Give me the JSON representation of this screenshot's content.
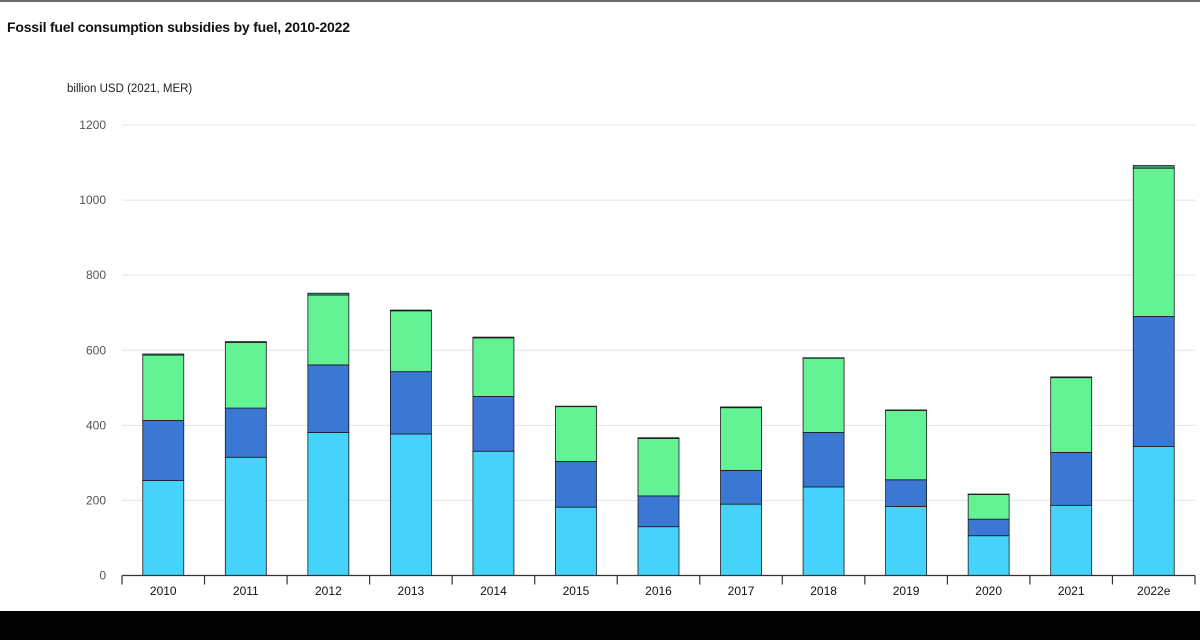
{
  "title": "Fossil fuel consumption subsidies by fuel, 2010-2022",
  "unit_label": "billion USD (2021, MER)",
  "chart_data": {
    "type": "bar",
    "stacked": true,
    "title": "Fossil fuel consumption subsidies by fuel, 2010-2022",
    "ylabel": "billion USD (2021, MER)",
    "xlabel": "",
    "ylim": [
      0,
      1200
    ],
    "yticks": [
      0,
      200,
      400,
      600,
      800,
      1000,
      1200
    ],
    "grid": true,
    "categories": [
      "2010",
      "2011",
      "2012",
      "2013",
      "2014",
      "2015",
      "2016",
      "2017",
      "2018",
      "2019",
      "2020",
      "2021",
      "2022e"
    ],
    "series": [
      {
        "color": "#45d3fc",
        "values": [
          253,
          315,
          381,
          377,
          331,
          182,
          130,
          190,
          236,
          184,
          106,
          187,
          344
        ]
      },
      {
        "color": "#3a78d3",
        "values": [
          160,
          131,
          180,
          166,
          146,
          122,
          82,
          90,
          145,
          71,
          44,
          141,
          346
        ]
      },
      {
        "color": "#63f294",
        "values": [
          174,
          175,
          186,
          162,
          156,
          146,
          153,
          167,
          198,
          185,
          66,
          199,
          395
        ]
      },
      {
        "color": "#2f9e84",
        "values": [
          3,
          2,
          5,
          2,
          2,
          1,
          2,
          2,
          1,
          1,
          1,
          2,
          7
        ]
      }
    ]
  }
}
